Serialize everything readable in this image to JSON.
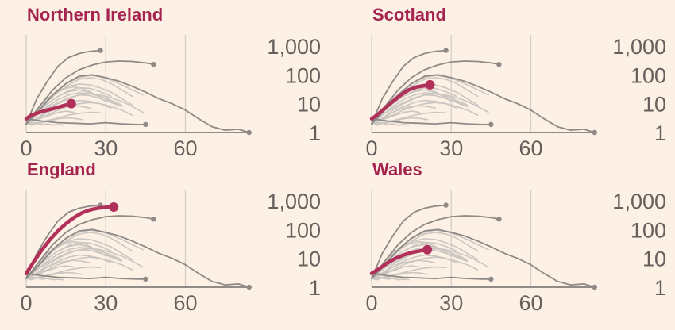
{
  "colors": {
    "background": "#fdf1e5",
    "highlight": "#b0305a",
    "title": "#a5234f",
    "context_dark": "#8f8a86",
    "context_light": "#cbc6c1",
    "grid": "#d6cec6",
    "axis_text": "#66605c"
  },
  "chart_data": [
    {
      "type": "line",
      "title": "Northern Ireland",
      "y_scale": "log",
      "ylim": [
        1,
        1000
      ],
      "xlim": [
        0,
        85
      ],
      "x_ticks": [
        "0",
        "30",
        "60"
      ],
      "y_ticks": [
        "1",
        "10",
        "100",
        "1,000"
      ],
      "grid": "vertical",
      "series": [
        {
          "values_x": [
            0,
            2,
            5,
            8,
            11,
            14,
            17
          ],
          "values_y": [
            3,
            4,
            5,
            6,
            7,
            8.5,
            10
          ]
        }
      ]
    },
    {
      "type": "line",
      "title": "Scotland",
      "y_scale": "log",
      "ylim": [
        1,
        1000
      ],
      "xlim": [
        0,
        85
      ],
      "x_ticks": [
        "0",
        "30",
        "60"
      ],
      "y_ticks": [
        "1",
        "10",
        "100",
        "1,000"
      ],
      "grid": "vertical",
      "series": [
        {
          "values_x": [
            0,
            2,
            5,
            8,
            11,
            14,
            17,
            20,
            22
          ],
          "values_y": [
            3,
            4,
            7,
            12,
            20,
            30,
            38,
            42,
            45
          ]
        }
      ]
    },
    {
      "type": "line",
      "title": "England",
      "y_scale": "log",
      "ylim": [
        1,
        1000
      ],
      "xlim": [
        0,
        85
      ],
      "x_ticks": [
        "0",
        "30",
        "60"
      ],
      "y_ticks": [
        "1",
        "10",
        "100",
        "1,000"
      ],
      "grid": "vertical",
      "series": [
        {
          "values_x": [
            0,
            3,
            6,
            9,
            12,
            15,
            18,
            21,
            24,
            27,
            30,
            33
          ],
          "values_y": [
            3,
            8,
            20,
            45,
            90,
            160,
            260,
            380,
            480,
            550,
            590,
            600
          ]
        }
      ]
    },
    {
      "type": "line",
      "title": "Wales",
      "y_scale": "log",
      "ylim": [
        1,
        1000
      ],
      "xlim": [
        0,
        85
      ],
      "x_ticks": [
        "0",
        "30",
        "60"
      ],
      "y_ticks": [
        "1",
        "10",
        "100",
        "1,000"
      ],
      "grid": "vertical",
      "series": [
        {
          "values_x": [
            0,
            3,
            6,
            9,
            12,
            15,
            18,
            21
          ],
          "values_y": [
            3,
            4.5,
            7,
            10,
            13,
            16,
            18,
            20
          ]
        }
      ]
    }
  ],
  "context_series": {
    "dark": [
      {
        "x": [
          0,
          4,
          8,
          12,
          16,
          20,
          24,
          28
        ],
        "y": [
          2,
          15,
          60,
          200,
          400,
          550,
          650,
          700
        ]
      },
      {
        "x": [
          0,
          5,
          10,
          15,
          20,
          25,
          30,
          35,
          40,
          45,
          48
        ],
        "y": [
          2,
          8,
          30,
          80,
          150,
          220,
          280,
          300,
          290,
          260,
          230
        ]
      },
      {
        "x": [
          0,
          5,
          10,
          15,
          20,
          25,
          30,
          35,
          40,
          45,
          50,
          55,
          60,
          65,
          70,
          75,
          80,
          84
        ],
        "y": [
          2,
          6,
          20,
          50,
          90,
          100,
          80,
          60,
          40,
          25,
          15,
          10,
          6,
          3,
          1.6,
          1.2,
          1.3,
          1.0
        ]
      },
      {
        "x": [
          0,
          6,
          12,
          18,
          24,
          30,
          36,
          42,
          45
        ],
        "y": [
          3,
          2.5,
          2.2,
          2.1,
          2.0,
          2.2,
          2.0,
          1.9,
          1.9
        ]
      }
    ],
    "light": [
      {
        "x": [
          0,
          4,
          8,
          12,
          16,
          20,
          24,
          28,
          32,
          36,
          40
        ],
        "y": [
          2,
          6,
          15,
          28,
          40,
          48,
          45,
          35,
          25,
          15,
          9
        ]
      },
      {
        "x": [
          0,
          4,
          8,
          12,
          16,
          20,
          24,
          28,
          32,
          36
        ],
        "y": [
          2,
          5,
          10,
          18,
          26,
          30,
          24,
          18,
          12,
          8
        ]
      },
      {
        "x": [
          0,
          3,
          6,
          9,
          12,
          15,
          18,
          21,
          24,
          27,
          30
        ],
        "y": [
          2,
          4,
          9,
          16,
          25,
          34,
          38,
          34,
          26,
          18,
          12
        ]
      },
      {
        "x": [
          0,
          4,
          8,
          12,
          16,
          20,
          24,
          28,
          32,
          36,
          40,
          44
        ],
        "y": [
          2,
          3,
          6,
          10,
          15,
          20,
          22,
          20,
          16,
          12,
          8,
          5
        ]
      },
      {
        "x": [
          0,
          4,
          8,
          12,
          16,
          20,
          24,
          28,
          32
        ],
        "y": [
          2,
          3,
          5,
          8,
          11,
          13,
          12,
          10,
          7
        ]
      },
      {
        "x": [
          0,
          4,
          8,
          12,
          16,
          20,
          24,
          28,
          32,
          36,
          40
        ],
        "y": [
          2,
          5,
          12,
          25,
          45,
          70,
          80,
          70,
          50,
          30,
          18
        ]
      },
      {
        "x": [
          0,
          3,
          6,
          9,
          12,
          15,
          18,
          21,
          24
        ],
        "y": [
          2,
          2.8,
          4,
          5.5,
          7,
          8,
          8.5,
          8,
          7
        ]
      },
      {
        "x": [
          0,
          4,
          8,
          12,
          16,
          20,
          24,
          28,
          32,
          36
        ],
        "y": [
          2,
          4,
          8,
          14,
          20,
          24,
          22,
          18,
          13,
          9
        ]
      },
      {
        "x": [
          0,
          4,
          8,
          12,
          16,
          20,
          24,
          28,
          32,
          36,
          40
        ],
        "y": [
          2,
          3,
          4,
          6,
          8,
          10,
          11,
          10,
          8,
          6,
          4
        ]
      },
      {
        "x": [
          0,
          3,
          6,
          9,
          12,
          15,
          18
        ],
        "y": [
          2,
          2.5,
          3.2,
          4,
          5,
          5.5,
          5
        ]
      },
      {
        "x": [
          0,
          4,
          8,
          12,
          16,
          20,
          24,
          28,
          32,
          36,
          40,
          44
        ],
        "y": [
          2,
          6,
          14,
          30,
          55,
          80,
          95,
          85,
          65,
          45,
          30,
          20
        ]
      },
      {
        "x": [
          0,
          4,
          8,
          12,
          16,
          20,
          24,
          28
        ],
        "y": [
          2,
          2.2,
          2.6,
          3.2,
          4,
          4.6,
          5,
          4.8
        ]
      },
      {
        "x": [
          0,
          4,
          8,
          12,
          16,
          20,
          24,
          28,
          32,
          36
        ],
        "y": [
          2,
          4,
          7,
          11,
          16,
          20,
          19,
          15,
          11,
          8
        ]
      },
      {
        "x": [
          0,
          3,
          6,
          9,
          12,
          15,
          18,
          21
        ],
        "y": [
          2,
          2,
          2.2,
          2.6,
          3,
          3.2,
          3.1,
          2.8
        ]
      },
      {
        "x": [
          0,
          4,
          8,
          12,
          16,
          20,
          24,
          28,
          32
        ],
        "y": [
          2,
          5,
          10,
          18,
          28,
          36,
          34,
          26,
          18
        ]
      },
      {
        "x": [
          0,
          2,
          4,
          6,
          8,
          10,
          12,
          14
        ],
        "y": [
          2,
          1.8,
          2.1,
          1.9,
          2.0,
          1.8,
          1.9,
          1.8
        ]
      }
    ]
  }
}
